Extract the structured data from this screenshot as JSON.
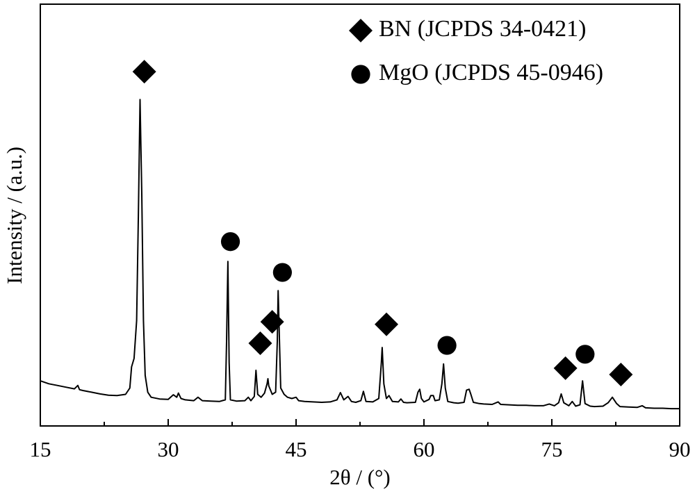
{
  "chart_data": {
    "type": "line",
    "xlabel": "2θ / (°)",
    "ylabel": "Intensity / (a.u.)",
    "xlim": [
      15,
      90
    ],
    "ylim": [
      0,
      100
    ],
    "xticks": [
      15,
      30,
      45,
      60,
      75,
      90
    ],
    "xticks_minor": [
      22.5,
      37.5,
      52.5,
      67.5,
      82.5
    ],
    "x": [
      15,
      16,
      17,
      18,
      19,
      19.4,
      19.6,
      20,
      21,
      22,
      23,
      24,
      25,
      25.5,
      25.7,
      26.0,
      26.3,
      26.5,
      26.7,
      26.9,
      27.1,
      27.3,
      27.6,
      28,
      29,
      30,
      30.6,
      31,
      31.2,
      31.5,
      32,
      33,
      33.5,
      34,
      35,
      36,
      36.7,
      36.85,
      37.0,
      37.15,
      37.3,
      38,
      39,
      39.4,
      39.7,
      40.1,
      40.3,
      40.5,
      40.9,
      41.3,
      41.6,
      41.7,
      41.8,
      42.2,
      42.6,
      42.8,
      42.9,
      43.0,
      43.2,
      43.6,
      44,
      44.5,
      45,
      45.3,
      46,
      47,
      48,
      49,
      49.8,
      50.2,
      50.6,
      51.1,
      51.5,
      52,
      52.6,
      52.9,
      53.2,
      54,
      54.7,
      55.0,
      55.1,
      55.3,
      55.6,
      55.9,
      56.3,
      57,
      57.3,
      57.6,
      58,
      59,
      59.3,
      59.5,
      59.7,
      60,
      60.6,
      60.8,
      61.1,
      61.3,
      61.8,
      62.1,
      62.3,
      62.5,
      62.8,
      63.5,
      64,
      64.7,
      65.0,
      65.3,
      65.5,
      65.8,
      66.5,
      67,
      68,
      68.7,
      69,
      70,
      71,
      72,
      73,
      74,
      74.7,
      75.3,
      75.8,
      76.1,
      76.4,
      77,
      77.4,
      77.8,
      78.3,
      78.6,
      78.9,
      79.5,
      80,
      81,
      81.6,
      82.1,
      82.6,
      83,
      84,
      85,
      85.6,
      86,
      87,
      88,
      89,
      90
    ],
    "series": [
      {
        "color": "#000000",
        "values": [
          10.7,
          10.0,
          9.6,
          9.2,
          8.8,
          9.6,
          8.6,
          8.4,
          8.0,
          7.6,
          7.3,
          7.2,
          7.5,
          9,
          14,
          16,
          25,
          50,
          77.4,
          55,
          25,
          12,
          8,
          6.8,
          6.4,
          6.3,
          7.4,
          6.8,
          7.8,
          6.5,
          6.2,
          6.0,
          6.8,
          6.0,
          5.9,
          5.8,
          6.2,
          20,
          39,
          15,
          6.2,
          5.9,
          6.0,
          6.8,
          6.0,
          7,
          13.2,
          7.5,
          6.8,
          7.8,
          10,
          11.2,
          9.5,
          7.5,
          8,
          20,
          32.1,
          24,
          9,
          7.5,
          6.8,
          6.5,
          6.8,
          6,
          5.8,
          5.7,
          5.6,
          5.7,
          6.2,
          7.9,
          6.2,
          7.0,
          5.8,
          5.6,
          6,
          8.2,
          5.8,
          5.7,
          6.5,
          15,
          18.6,
          10,
          6.5,
          7.2,
          5.8,
          5.7,
          6.4,
          5.6,
          5.5,
          5.6,
          8,
          8.7,
          6.5,
          5.7,
          6.3,
          7.2,
          7.2,
          6.0,
          6.2,
          10,
          14.7,
          9,
          5.8,
          5.5,
          5.4,
          5.6,
          8.5,
          8.7,
          7.5,
          5.6,
          5.3,
          5.2,
          5.1,
          5.7,
          5.1,
          5.0,
          4.9,
          4.9,
          4.8,
          4.8,
          5.2,
          4.8,
          5.5,
          7.6,
          5.5,
          4.8,
          5.8,
          4.7,
          5,
          10.7,
          5.3,
          4.7,
          4.6,
          4.7,
          5.5,
          6.8,
          5.3,
          4.6,
          4.5,
          4.4,
          4.8,
          4.3,
          4.2,
          4.2,
          4.1,
          4.1
        ]
      }
    ],
    "markers": [
      {
        "name": "BN (JCPDS 34-0421)",
        "shape": "diamond",
        "color": "#000000",
        "x": [
          27.2,
          40.8,
          42.2,
          55.6,
          76.6,
          83.1
        ],
        "y": [
          84.0,
          19.6,
          24.7,
          24.1,
          13.7,
          12.2
        ]
      },
      {
        "name": "MgO (JCPDS 45-0946)",
        "shape": "circle",
        "color": "#000000",
        "x": [
          37.3,
          43.4,
          62.7,
          78.9
        ],
        "y": [
          43.7,
          36.4,
          19.1,
          17.0
        ]
      }
    ],
    "legend": "upper right"
  }
}
